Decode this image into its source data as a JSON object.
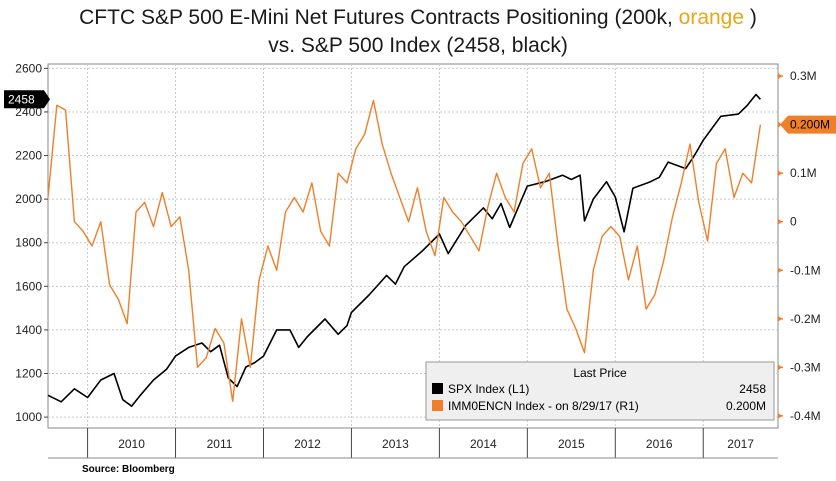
{
  "title": {
    "line1_prefix": "CFTC S&P 500 E-Mini Net Futures Contracts Positioning (200k, ",
    "line1_highlight": "orange",
    "line1_suffix": " )",
    "line2": "vs. S&P 500 Index (2458, black)"
  },
  "source": "Source: Bloomberg",
  "legend": {
    "header": "Last Price",
    "rows": [
      {
        "label": "SPX Index  (L1)",
        "value": "2458",
        "color": "#000000"
      },
      {
        "label": "IMM0ENCN Index -  on 8/29/17  (R1)",
        "value": "0.200M",
        "color": "#f07f2a"
      }
    ]
  },
  "last_value_labels": {
    "left": "2458",
    "right": "0.200M"
  },
  "colors": {
    "spx": "#000000",
    "positioning": "#f07f2a",
    "grid": "#c8c8c8"
  },
  "chart_data": {
    "type": "line",
    "x_ticks": [
      "2010",
      "2011",
      "2012",
      "2013",
      "2014",
      "2015",
      "2016",
      "2017"
    ],
    "x_range": [
      2009.55,
      2017.85
    ],
    "left_axis": {
      "ticks": [
        1000,
        1200,
        1400,
        1600,
        1800,
        2000,
        2200,
        2400,
        2600
      ],
      "range": [
        950,
        2620
      ],
      "series": "SPX Index"
    },
    "right_axis": {
      "ticks": [
        0.3,
        0.2,
        0.1,
        0,
        -0.1,
        -0.2,
        -0.3,
        -0.4
      ],
      "tick_labels": [
        "0.3M",
        "0.2M",
        "0.1M",
        "0",
        "-0.1M",
        "-0.2M",
        "-0.3M",
        "-0.4M"
      ],
      "range": [
        -0.425,
        0.325
      ],
      "series": "IMM0ENCN Index"
    },
    "grid": true,
    "legend_position": "bottom-right",
    "series": [
      {
        "name": "SPX Index",
        "axis": "left",
        "x": [
          2009.55,
          2009.7,
          2009.85,
          2010.0,
          2010.15,
          2010.3,
          2010.4,
          2010.5,
          2010.6,
          2010.75,
          2010.9,
          2011.0,
          2011.15,
          2011.3,
          2011.4,
          2011.5,
          2011.6,
          2011.7,
          2011.8,
          2011.9,
          2012.0,
          2012.15,
          2012.3,
          2012.4,
          2012.5,
          2012.7,
          2012.85,
          2012.95,
          2013.0,
          2013.2,
          2013.4,
          2013.5,
          2013.6,
          2013.8,
          2014.0,
          2014.1,
          2014.3,
          2014.5,
          2014.6,
          2014.7,
          2014.8,
          2015.0,
          2015.2,
          2015.4,
          2015.5,
          2015.6,
          2015.65,
          2015.75,
          2015.9,
          2016.0,
          2016.1,
          2016.2,
          2016.4,
          2016.5,
          2016.6,
          2016.8,
          2016.9,
          2017.0,
          2017.2,
          2017.4,
          2017.5,
          2017.6,
          2017.65
        ],
        "y": [
          1100,
          1070,
          1130,
          1090,
          1170,
          1200,
          1080,
          1050,
          1100,
          1170,
          1220,
          1280,
          1320,
          1340,
          1300,
          1330,
          1180,
          1140,
          1230,
          1250,
          1280,
          1400,
          1400,
          1320,
          1370,
          1450,
          1380,
          1420,
          1480,
          1560,
          1650,
          1610,
          1690,
          1760,
          1840,
          1750,
          1880,
          1960,
          1910,
          1980,
          1870,
          2060,
          2080,
          2110,
          2090,
          2110,
          1900,
          2000,
          2080,
          2010,
          1850,
          2050,
          2080,
          2100,
          2170,
          2140,
          2200,
          2270,
          2380,
          2390,
          2430,
          2480,
          2458
        ]
      },
      {
        "name": "IMM0ENCN Index",
        "axis": "right",
        "x": [
          2009.55,
          2009.65,
          2009.75,
          2009.85,
          2009.95,
          2010.05,
          2010.15,
          2010.25,
          2010.35,
          2010.45,
          2010.55,
          2010.65,
          2010.75,
          2010.85,
          2010.95,
          2011.05,
          2011.15,
          2011.25,
          2011.35,
          2011.45,
          2011.55,
          2011.65,
          2011.75,
          2011.85,
          2011.95,
          2012.05,
          2012.15,
          2012.25,
          2012.35,
          2012.45,
          2012.55,
          2012.65,
          2012.75,
          2012.85,
          2012.95,
          2013.05,
          2013.15,
          2013.25,
          2013.35,
          2013.45,
          2013.55,
          2013.65,
          2013.75,
          2013.85,
          2013.95,
          2014.05,
          2014.15,
          2014.25,
          2014.35,
          2014.45,
          2014.55,
          2014.65,
          2014.75,
          2014.85,
          2014.95,
          2015.05,
          2015.15,
          2015.25,
          2015.35,
          2015.45,
          2015.55,
          2015.65,
          2015.75,
          2015.85,
          2015.95,
          2016.05,
          2016.15,
          2016.25,
          2016.35,
          2016.45,
          2016.55,
          2016.65,
          2016.75,
          2016.85,
          2016.95,
          2017.05,
          2017.15,
          2017.25,
          2017.35,
          2017.45,
          2017.55,
          2017.65
        ],
        "y": [
          0.05,
          0.24,
          0.23,
          0.0,
          -0.02,
          -0.05,
          0.0,
          -0.13,
          -0.16,
          -0.21,
          0.02,
          0.04,
          -0.01,
          0.06,
          -0.01,
          0.01,
          -0.1,
          -0.3,
          -0.28,
          -0.22,
          -0.25,
          -0.37,
          -0.2,
          -0.3,
          -0.12,
          -0.05,
          -0.1,
          0.02,
          0.05,
          0.02,
          0.08,
          -0.02,
          -0.05,
          0.1,
          0.08,
          0.15,
          0.18,
          0.25,
          0.16,
          0.1,
          0.05,
          0.0,
          0.07,
          -0.02,
          -0.07,
          0.05,
          0.02,
          0.0,
          -0.03,
          -0.06,
          0.03,
          0.1,
          0.05,
          0.02,
          0.12,
          0.15,
          0.07,
          0.1,
          -0.05,
          -0.18,
          -0.22,
          -0.27,
          -0.1,
          -0.03,
          -0.01,
          -0.03,
          -0.12,
          -0.05,
          -0.18,
          -0.15,
          -0.08,
          0.01,
          0.08,
          0.16,
          0.04,
          -0.04,
          0.12,
          0.15,
          0.05,
          0.1,
          0.08,
          0.2
        ]
      }
    ]
  }
}
